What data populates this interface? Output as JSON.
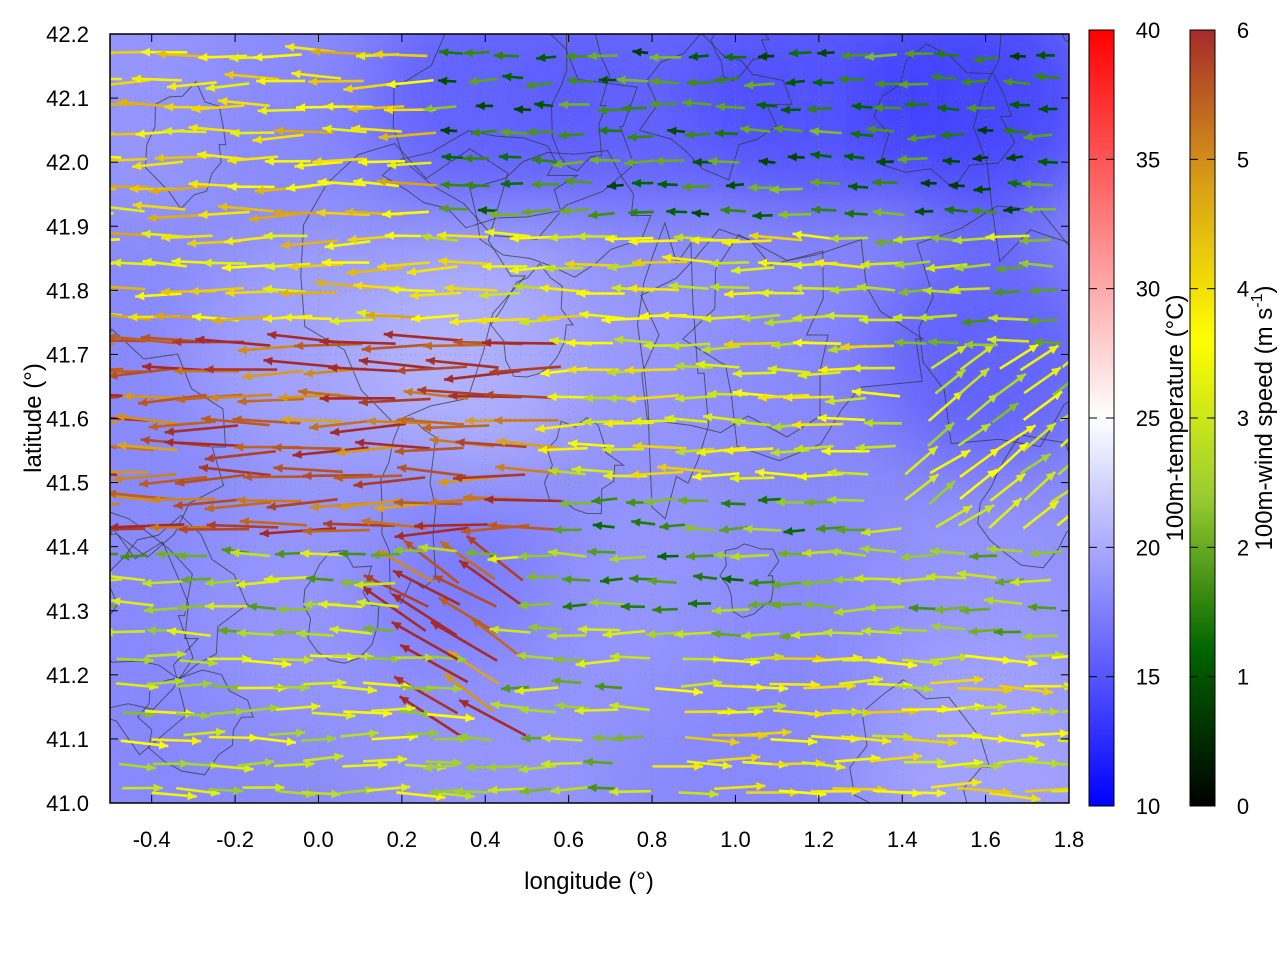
{
  "chart_data": {
    "type": "heatmap",
    "title": "",
    "xlabel": "longitude (°)",
    "ylabel": "latitude (°)",
    "xlim": [
      -0.5,
      1.8
    ],
    "ylim": [
      41.0,
      42.2
    ],
    "x_ticks": [
      "-0.4",
      "-0.2",
      "0.0",
      "0.2",
      "0.4",
      "0.6",
      "0.8",
      "1.0",
      "1.2",
      "1.4",
      "1.6",
      "1.8"
    ],
    "y_ticks": [
      "41.0",
      "41.1",
      "41.2",
      "41.3",
      "41.4",
      "41.5",
      "41.6",
      "41.7",
      "41.8",
      "41.9",
      "42.0",
      "42.1",
      "42.2"
    ],
    "grid": true,
    "colorbars": [
      {
        "label": "100m-temperature (°C)",
        "range": [
          10,
          40
        ],
        "ticks": [
          "10",
          "15",
          "20",
          "25",
          "30",
          "35",
          "40"
        ],
        "colors": [
          "#0000ff",
          "#ffffff",
          "#ff0000"
        ]
      },
      {
        "label": "100m-wind speed (m s-1)",
        "range": [
          0,
          6
        ],
        "ticks": [
          "0",
          "1",
          "2",
          "3",
          "4",
          "5",
          "6"
        ],
        "colors": [
          "#000000",
          "#006400",
          "#9acd32",
          "#ffff00",
          "#d9a016",
          "#a52a2a"
        ]
      }
    ],
    "temperature_field": {
      "description_level": "mostly 15-22 °C, warmer band across centre-west, coolest in north-east",
      "samples": [
        {
          "lon": -0.4,
          "lat": 42.1,
          "temp": 19
        },
        {
          "lon": 0.0,
          "lat": 42.1,
          "temp": 18
        },
        {
          "lon": 0.4,
          "lat": 42.1,
          "temp": 15
        },
        {
          "lon": 0.8,
          "lat": 42.1,
          "temp": 15
        },
        {
          "lon": 1.2,
          "lat": 42.1,
          "temp": 14
        },
        {
          "lon": 1.6,
          "lat": 42.1,
          "temp": 13
        },
        {
          "lon": -0.4,
          "lat": 41.7,
          "temp": 18
        },
        {
          "lon": 0.0,
          "lat": 41.7,
          "temp": 20
        },
        {
          "lon": 0.4,
          "lat": 41.7,
          "temp": 21
        },
        {
          "lon": 0.8,
          "lat": 41.7,
          "temp": 19
        },
        {
          "lon": 1.2,
          "lat": 41.7,
          "temp": 18
        },
        {
          "lon": 1.6,
          "lat": 41.7,
          "temp": 15
        },
        {
          "lon": -0.4,
          "lat": 41.3,
          "temp": 18
        },
        {
          "lon": 0.0,
          "lat": 41.3,
          "temp": 19
        },
        {
          "lon": 0.4,
          "lat": 41.3,
          "temp": 17
        },
        {
          "lon": 0.8,
          "lat": 41.3,
          "temp": 19
        },
        {
          "lon": 1.2,
          "lat": 41.3,
          "temp": 18
        },
        {
          "lon": 1.6,
          "lat": 41.3,
          "temp": 19
        },
        {
          "lon": -0.4,
          "lat": 41.05,
          "temp": 18
        },
        {
          "lon": 0.4,
          "lat": 41.05,
          "temp": 19
        },
        {
          "lon": 1.0,
          "lat": 41.05,
          "temp": 18
        },
        {
          "lon": 1.6,
          "lat": 41.05,
          "temp": 20
        }
      ]
    },
    "wind_field": {
      "regimes": [
        {
          "region": "west, lat 41.4-41.75, lon -0.5 to 0.6",
          "direction": "westward",
          "speed": 5.5
        },
        {
          "region": "west, lat 41.75-42.2, lon -0.5 to 0.3",
          "direction": "westward",
          "speed": 4.0
        },
        {
          "region": "centre, lat 41.5-41.9, lon 0.3 to 1.4",
          "direction": "westward",
          "speed": 3.5
        },
        {
          "region": "north-east, lat 41.9-42.2, lon 0.3 to 1.8",
          "direction": "westward",
          "speed": 1.5
        },
        {
          "region": "south-west, lat 41.0-41.25, lon -0.5 to 0.3",
          "direction": "eastward",
          "speed": 3.0
        },
        {
          "region": "south-east, lat 41.0-41.25, lon 0.8 to 1.8",
          "direction": "eastward",
          "speed": 3.5
        },
        {
          "region": "south-centre, lat 41.1-41.35, lon 0.2 to 0.5",
          "direction": "north-westward",
          "speed": 5.5
        },
        {
          "region": "east, lat 41.4-41.7, lon 1.4 to 1.8",
          "direction": "north-eastward",
          "speed": 3.0
        },
        {
          "region": "centre, lat 41.3-41.5, lon 0.6 to 1.2",
          "direction": "westward",
          "speed": 2.0
        }
      ]
    }
  }
}
